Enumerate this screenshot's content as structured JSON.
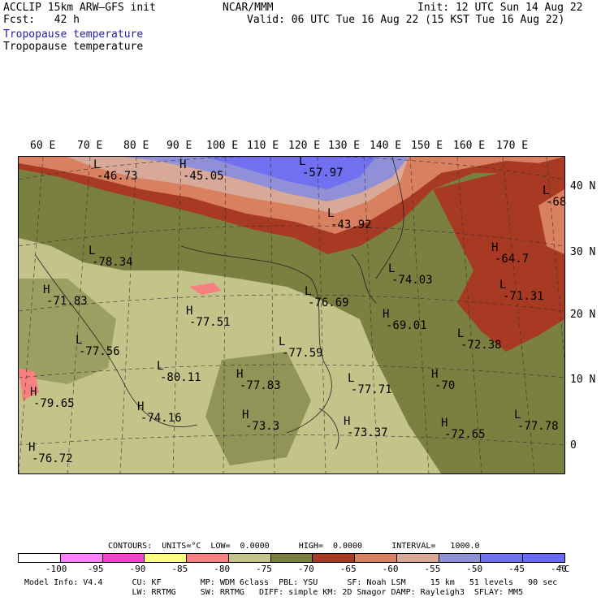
{
  "header": {
    "model_line": "ACCLIP 15km ARW–GFS init",
    "fcst_line": "Fcst:   42 h",
    "center": "NCAR/MMM",
    "init": "Init: 12 UTC Sun 14 Aug 22",
    "valid": "Valid: 06 UTC Tue 16 Aug 22 (15 KST Tue 16 Aug 22)",
    "field_title_1": "Tropopause temperature",
    "field_title_2": "Tropopause temperature"
  },
  "map": {
    "lon_labels": [
      "60 E",
      "70 E",
      "80 E",
      "90 E",
      "100 E",
      "110 E",
      "120 E",
      "130 E",
      "140 E",
      "150 E",
      "160 E",
      "170 E"
    ],
    "lat_labels": [
      "40 N",
      "30 N",
      "20 N",
      "10 N",
      "0"
    ],
    "annotations": [
      {
        "kind": "L",
        "value": "-46.73"
      },
      {
        "kind": "H",
        "value": "-45.05"
      },
      {
        "kind": "L",
        "value": "-57.97"
      },
      {
        "kind": "L",
        "value": "-43.92"
      },
      {
        "kind": "L",
        "value": "-68"
      },
      {
        "kind": "L",
        "value": "-78.34"
      },
      {
        "kind": "H",
        "value": "-71.83"
      },
      {
        "kind": "L",
        "value": "-77.56"
      },
      {
        "kind": "H",
        "value": "-77.51"
      },
      {
        "kind": "L",
        "value": "-76.69"
      },
      {
        "kind": "L",
        "value": "-74.03"
      },
      {
        "kind": "H",
        "value": "-69.01"
      },
      {
        "kind": "H",
        "value": "-64.7"
      },
      {
        "kind": "L",
        "value": "-71.31"
      },
      {
        "kind": "L",
        "value": "-72.38"
      },
      {
        "kind": "L",
        "value": "-77.59"
      },
      {
        "kind": "L",
        "value": "-80.11"
      },
      {
        "kind": "H",
        "value": "-77.83"
      },
      {
        "kind": "L",
        "value": "-77.71"
      },
      {
        "kind": "H",
        "value": "-70"
      },
      {
        "kind": "H",
        "value": "-79.65"
      },
      {
        "kind": "H",
        "value": "-74.16"
      },
      {
        "kind": "H",
        "value": "-73.3"
      },
      {
        "kind": "H",
        "value": "-73.37"
      },
      {
        "kind": "H",
        "value": "-72.65"
      },
      {
        "kind": "L",
        "value": "-77.78"
      },
      {
        "kind": "H",
        "value": "-76.72"
      }
    ]
  },
  "contours_line": "CONTOURS:  UNITS=°C  LOW=  0.0000      HIGH=  0.0000      INTERVAL=   1000.0",
  "colorbar": {
    "colors": [
      "#ffffff",
      "#ff80ff",
      "#ff3fd0",
      "#ffff80",
      "#f88080",
      "#c4c48a",
      "#7a8040",
      "#a83a24",
      "#d88060",
      "#d8a898",
      "#9090d8",
      "#7070f0",
      "#6a6af8"
    ],
    "tick_labels": [
      "-100",
      "-95",
      "-90",
      "-85",
      "-80",
      "-75",
      "-70",
      "-65",
      "-60",
      "-55",
      "-50",
      "-45",
      "-40"
    ],
    "unit": "°C"
  },
  "footer": {
    "line1": "Model Info: V4.4      CU: KF        MP: WDM 6class  PBL: YSU      SF: Noah LSM     15 km   51 levels   90 sec",
    "line2": "                      LW: RRTMG     SW: RRTMG   DIFF: simple KM: 2D Smagor DAMP: Rayleigh3  SFLAY: MM5"
  }
}
